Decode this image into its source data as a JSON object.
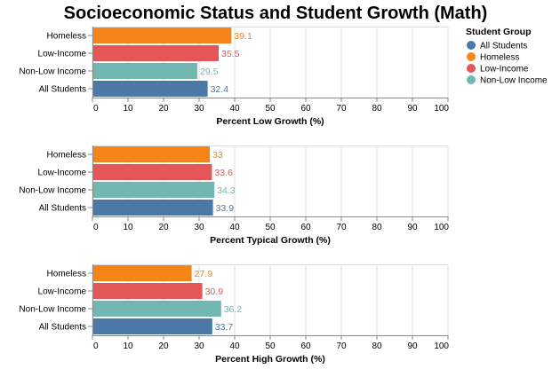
{
  "chart_data": {
    "type": "bar",
    "orientation": "horizontal",
    "title": "Socioeconomic Status and Student Growth (Math)",
    "categories": [
      "Homeless",
      "Low-Income",
      "Non-Low Income",
      "All Students"
    ],
    "xlim": [
      0,
      100
    ],
    "xticks": [
      0,
      10,
      20,
      30,
      40,
      50,
      60,
      70,
      80,
      90,
      100
    ],
    "grid": true,
    "legend": {
      "title": "Student Group",
      "placement": "right",
      "entries": [
        "All Students",
        "Homeless",
        "Low-Income",
        "Non-Low Income"
      ]
    },
    "colors": {
      "All Students": "#4c78a8",
      "Homeless": "#f58518",
      "Low-Income": "#e45756",
      "Non-Low Income": "#72b7b2"
    },
    "panels": [
      {
        "xlabel": "Percent Low Growth (%)",
        "values": [
          39.1,
          35.5,
          29.5,
          32.4
        ],
        "labels": [
          "39.1",
          "35.5",
          "29.5",
          "32.4"
        ]
      },
      {
        "xlabel": "Percent Typical Growth (%)",
        "values": [
          33,
          33.6,
          34.3,
          33.9
        ],
        "labels": [
          "33",
          "33.6",
          "34.3",
          "33.9"
        ]
      },
      {
        "xlabel": "Percent High Growth (%)",
        "values": [
          27.9,
          30.9,
          36.2,
          33.7
        ],
        "labels": [
          "27.9",
          "30.9",
          "36.2",
          "33.7"
        ]
      }
    ]
  }
}
